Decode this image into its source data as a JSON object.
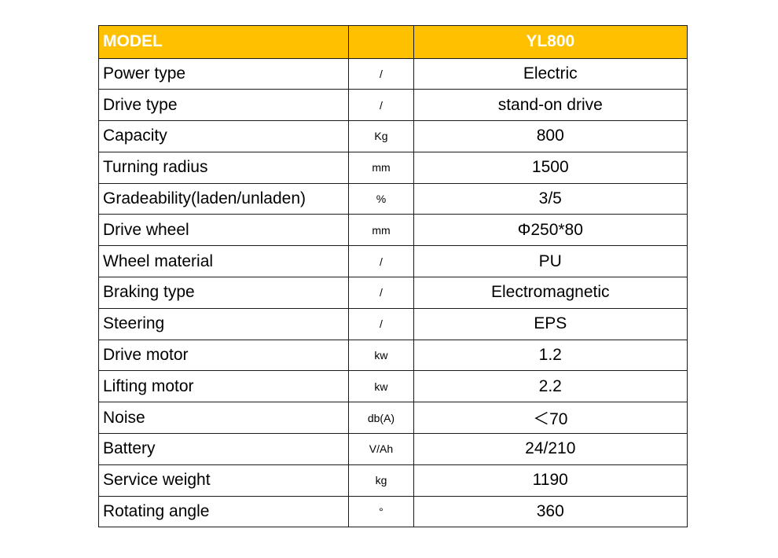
{
  "table": {
    "header": {
      "parameter": "MODEL",
      "unit": "",
      "value": "YL800"
    },
    "rows": [
      {
        "parameter": "Power type",
        "unit": "/",
        "value": "Electric"
      },
      {
        "parameter": "Drive type",
        "unit": "/",
        "value": "stand-on drive"
      },
      {
        "parameter": "Capacity",
        "unit": "Kg",
        "value": "800"
      },
      {
        "parameter": "Turning radius",
        "unit": "mm",
        "value": "1500"
      },
      {
        "parameter": "Gradeability(laden/unladen)",
        "unit": "%",
        "value": "3/5"
      },
      {
        "parameter": "Drive wheel",
        "unit": "mm",
        "value": "Φ250*80"
      },
      {
        "parameter": "Wheel material",
        "unit": "/",
        "value": "PU"
      },
      {
        "parameter": "Braking type",
        "unit": "/",
        "value": "Electromagnetic"
      },
      {
        "parameter": "Steering",
        "unit": "/",
        "value": "EPS"
      },
      {
        "parameter": "Drive motor",
        "unit": "kw",
        "value": "1.2"
      },
      {
        "parameter": "Lifting motor",
        "unit": "kw",
        "value": "2.2"
      },
      {
        "parameter": "Noise",
        "unit": "db(A)",
        "value": "＜70"
      },
      {
        "parameter": "Battery",
        "unit": "V/Ah",
        "value": "24/210"
      },
      {
        "parameter": "Service weight",
        "unit": "kg",
        "value": "1190"
      },
      {
        "parameter": "Rotating angle",
        "unit": "°",
        "value": "360"
      }
    ]
  },
  "colors": {
    "header_background": "#ffc000",
    "header_text": "#ffffff",
    "border": "#1a1a1a"
  }
}
